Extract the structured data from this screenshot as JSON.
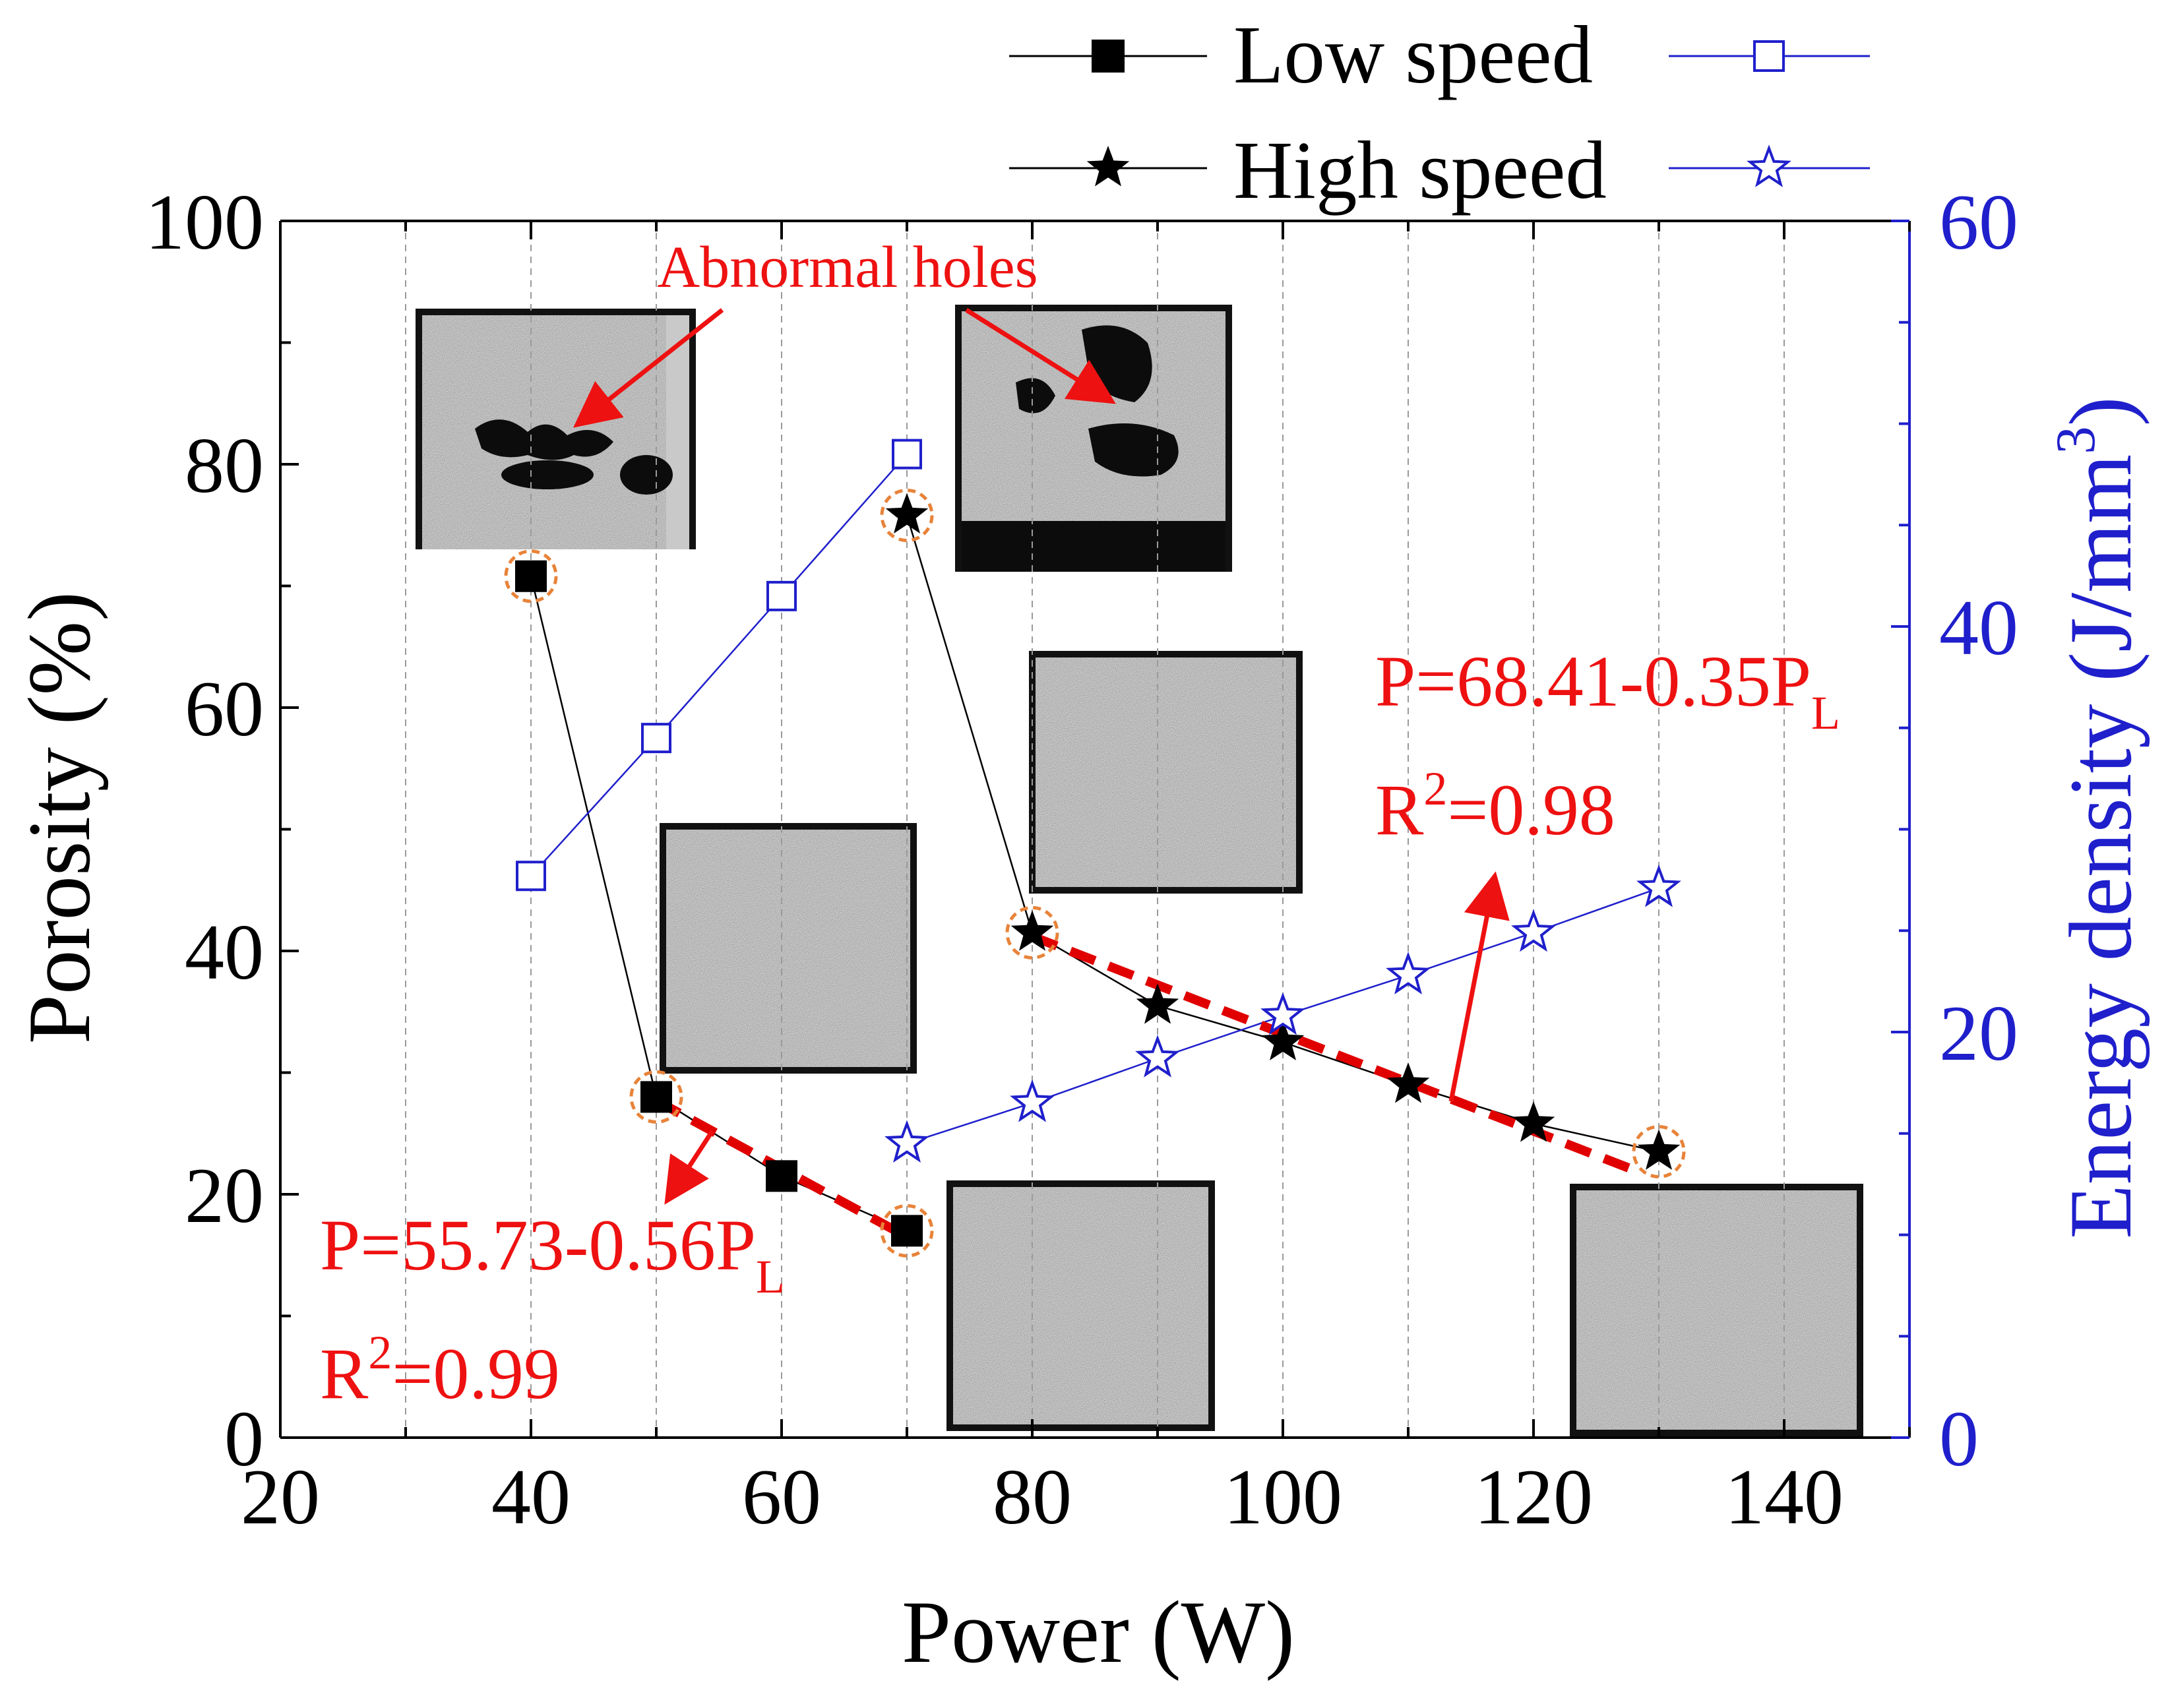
{
  "chart_data": {
    "type": "line",
    "title": "",
    "xlabel": "Power (W)",
    "ylabel": "Porosity (%)",
    "y2label_main": "Energy density (J/mm",
    "y2label_sup": "3",
    "y2label_close": ")",
    "xlim": [
      20,
      150
    ],
    "ylim": [
      0,
      100
    ],
    "y2lim": [
      0,
      60
    ],
    "xticks": [
      20,
      40,
      60,
      80,
      100,
      120,
      140
    ],
    "yticks": [
      0,
      20,
      40,
      60,
      80,
      100
    ],
    "y2ticks": [
      0,
      20,
      40,
      60
    ],
    "grid": "vertical-dashed",
    "legend_position": "top-right",
    "legend": {
      "low_label": "Low speed",
      "high_label": "High speed"
    },
    "series": [
      {
        "name": "Low speed",
        "axis": "porosity",
        "marker": "filled-square",
        "color": "#000000",
        "x": [
          40,
          50,
          60,
          70
        ],
        "y": [
          70.8,
          28,
          21.5,
          17
        ]
      },
      {
        "name": "High speed",
        "axis": "porosity",
        "marker": "filled-star",
        "color": "#000000",
        "x": [
          70,
          80,
          90,
          100,
          110,
          120,
          130
        ],
        "y": [
          75.8,
          41.5,
          35.5,
          32.5,
          29,
          25.8,
          23.5
        ]
      },
      {
        "name": "Low speed",
        "axis": "energy_density",
        "marker": "open-square",
        "color": "#1f1fcc",
        "x": [
          40,
          50,
          60,
          70
        ],
        "y": [
          27.7,
          34.5,
          41.5,
          48.5
        ]
      },
      {
        "name": "High speed",
        "axis": "energy_density",
        "marker": "open-star",
        "color": "#1f1fcc",
        "x": [
          70,
          80,
          90,
          100,
          110,
          120,
          130
        ],
        "y": [
          14.5,
          16.5,
          18.7,
          20.8,
          22.8,
          24.9,
          27.1
        ]
      }
    ],
    "fits": [
      {
        "x": [
          50,
          70
        ],
        "y": [
          27.7,
          16.5
        ],
        "color": "#e00000",
        "style": "dashed"
      },
      {
        "x": [
          80,
          128
        ],
        "y": [
          41.2,
          22
        ],
        "color": "#e00000",
        "style": "dashed"
      }
    ],
    "highlighted_points": [
      {
        "x": 40,
        "y": 70.8
      },
      {
        "x": 50,
        "y": 28
      },
      {
        "x": 70,
        "y": 17
      },
      {
        "x": 70,
        "y": 75.8
      },
      {
        "x": 80,
        "y": 41.5
      },
      {
        "x": 130,
        "y": 23.5
      }
    ],
    "annotations": {
      "abnormal_holes": "Abnormal holes",
      "eq_low_main": "P=55.73-0.56P",
      "eq_low_sub": "L",
      "r2_low_r": "R",
      "r2_low_sup": "2",
      "r2_low_val": "=0.99",
      "eq_high_main": "P=68.41-0.35P",
      "eq_high_sub": "L",
      "r2_high_r": "R",
      "r2_high_sup": "2",
      "r2_high_val": "=0.98"
    },
    "colors": {
      "axis": "#000000",
      "right_axis": "#1f1fcc",
      "fit": "#e00000",
      "highlight_circle": "#e8833a",
      "annotation": "#ee1111"
    }
  }
}
